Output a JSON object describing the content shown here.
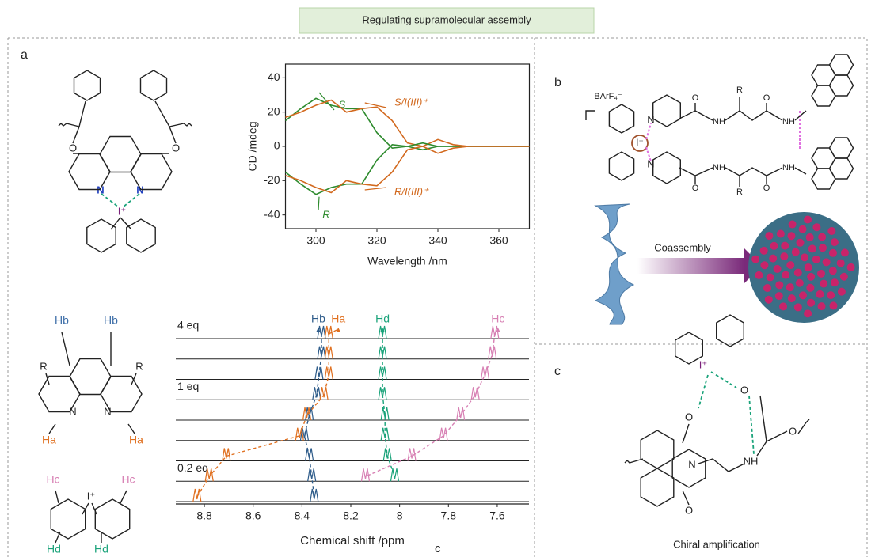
{
  "header": {
    "title": "Regulating supramolecular assembly"
  },
  "panel_labels": [
    "a",
    "b",
    "c"
  ],
  "stray_label": "c",
  "chart_data": [
    {
      "type": "line",
      "xlabel": "Wavelength /nm",
      "ylabel": "CD /mdeg",
      "x": [
        290,
        295,
        300,
        305,
        310,
        315,
        320,
        325,
        330,
        335,
        340,
        345,
        350,
        360,
        370
      ],
      "series": [
        {
          "name": "S",
          "color": "#2e8b2e",
          "values": [
            15,
            22,
            28,
            24,
            22,
            22,
            8,
            -1,
            0,
            -2,
            0,
            0,
            0,
            0,
            0
          ]
        },
        {
          "name": "S/I(III)⁺",
          "color": "#d2691e",
          "values": [
            17,
            20,
            24,
            27,
            20,
            22,
            23,
            15,
            2,
            0,
            4,
            1,
            0,
            0,
            0
          ]
        },
        {
          "name": "R",
          "color": "#2e8b2e",
          "values": [
            -15,
            -22,
            -28,
            -24,
            -22,
            -22,
            -8,
            1,
            0,
            2,
            0,
            0,
            0,
            0,
            0
          ]
        },
        {
          "name": "R/I(III)⁺",
          "color": "#d2691e",
          "values": [
            -17,
            -20,
            -24,
            -27,
            -20,
            -22,
            -23,
            -15,
            -2,
            0,
            -4,
            -1,
            0,
            0,
            0
          ]
        }
      ],
      "xlim": [
        290,
        370
      ],
      "ylim": [
        -48,
        48
      ],
      "xticks": [
        300,
        320,
        340,
        360
      ],
      "yticks": [
        -40,
        -20,
        0,
        20,
        40
      ]
    },
    {
      "type": "spectrum",
      "xlabel": "Chemical shift /ppm",
      "traces": [
        "4 eq",
        null,
        null,
        "1 eq",
        null,
        null,
        null,
        "0.2 eq",
        null
      ],
      "series": [
        {
          "name": "Hb",
          "color": "#2e5c8a",
          "values": [
            8.32,
            8.32,
            8.33,
            8.34,
            8.37,
            8.39,
            8.37,
            8.36,
            8.35
          ]
        },
        {
          "name": "Ha",
          "color": "#e07020",
          "values": [
            8.29,
            8.29,
            8.29,
            8.31,
            8.38,
            8.41,
            8.71,
            8.78,
            8.83
          ]
        },
        {
          "name": "Hd",
          "color": "#1aa37a",
          "values": [
            8.07,
            8.07,
            8.07,
            8.07,
            8.06,
            8.06,
            8.05,
            8.02,
            null
          ]
        },
        {
          "name": "Hc",
          "color": "#d77fb3",
          "values": [
            7.61,
            7.62,
            7.65,
            7.69,
            7.75,
            7.82,
            7.95,
            8.14,
            null
          ]
        }
      ],
      "xlim": [
        8.93,
        7.47
      ],
      "xticks": [
        8.8,
        8.6,
        8.4,
        8.2,
        8.0,
        7.8,
        7.6
      ]
    }
  ],
  "structures": {
    "bisphenanthroline": [
      "O",
      "O",
      "N",
      "N",
      "I⁺"
    ],
    "phen_protons": [
      "Hb",
      "Hb",
      "R",
      "R",
      "N",
      "N",
      "Ha",
      "Ha"
    ],
    "fluorenyl_protons": [
      "Hc",
      "Hc",
      "I⁺",
      "Hd",
      "Hd"
    ],
    "panel_b": [
      "BArF₄⁻",
      "N",
      "N",
      "I⁺",
      "O",
      "NH",
      "R",
      "O",
      "NH",
      "O",
      "NH",
      "R",
      "O",
      "NH"
    ],
    "panel_b_caption": "Coassembly",
    "panel_c": [
      "I⁺",
      "O",
      "O",
      "O",
      "O",
      "N",
      "NH"
    ],
    "panel_c_caption": "Chiral amplification"
  }
}
